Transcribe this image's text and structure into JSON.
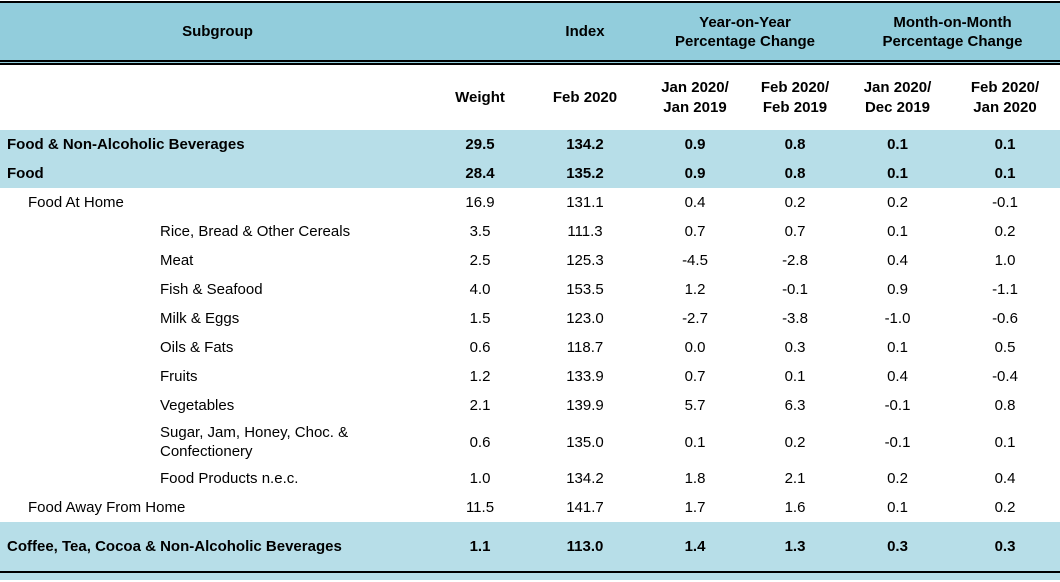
{
  "colors": {
    "header_bg": "#92CDDC",
    "highlight_bg": "#B7DEE8",
    "border": "#000000"
  },
  "table": {
    "header_top": {
      "subgroup": "Subgroup",
      "index": "Index",
      "yoy": "Year-on-Year\nPercentage Change",
      "mom": "Month-on-Month\nPercentage Change"
    },
    "header_sub": {
      "weight": "Weight",
      "index_period": "Feb 2020",
      "yoy1": "Jan 2020/\nJan 2019",
      "yoy2": "Feb 2020/\nFeb 2019",
      "mom1": "Jan 2020/\nDec 2019",
      "mom2": "Feb 2020/\nJan 2020"
    },
    "rows": [
      {
        "name": "Food & Non-Alcoholic Beverages",
        "indent": 0,
        "highlighted": true,
        "weight": "29.5",
        "index": "134.2",
        "yoy1": "0.9",
        "yoy2": "0.8",
        "mom1": "0.1",
        "mom2": "0.1"
      },
      {
        "name": "Food",
        "indent": 0,
        "highlighted": true,
        "weight": "28.4",
        "index": "135.2",
        "yoy1": "0.9",
        "yoy2": "0.8",
        "mom1": "0.1",
        "mom2": "0.1"
      },
      {
        "name": "Food At Home",
        "indent": 1,
        "highlighted": false,
        "weight": "16.9",
        "index": "131.1",
        "yoy1": "0.4",
        "yoy2": "0.2",
        "mom1": "0.2",
        "mom2": "-0.1"
      },
      {
        "name": "Rice, Bread & Other Cereals",
        "indent": 2,
        "highlighted": false,
        "weight": "3.5",
        "index": "111.3",
        "yoy1": "0.7",
        "yoy2": "0.7",
        "mom1": "0.1",
        "mom2": "0.2"
      },
      {
        "name": "Meat",
        "indent": 2,
        "highlighted": false,
        "weight": "2.5",
        "index": "125.3",
        "yoy1": "-4.5",
        "yoy2": "-2.8",
        "mom1": "0.4",
        "mom2": "1.0"
      },
      {
        "name": "Fish & Seafood",
        "indent": 2,
        "highlighted": false,
        "weight": "4.0",
        "index": "153.5",
        "yoy1": "1.2",
        "yoy2": "-0.1",
        "mom1": "0.9",
        "mom2": "-1.1"
      },
      {
        "name": "Milk & Eggs",
        "indent": 2,
        "highlighted": false,
        "weight": "1.5",
        "index": "123.0",
        "yoy1": "-2.7",
        "yoy2": "-3.8",
        "mom1": "-1.0",
        "mom2": "-0.6"
      },
      {
        "name": "Oils & Fats",
        "indent": 2,
        "highlighted": false,
        "weight": "0.6",
        "index": "118.7",
        "yoy1": "0.0",
        "yoy2": "0.3",
        "mom1": "0.1",
        "mom2": "0.5"
      },
      {
        "name": "Fruits",
        "indent": 2,
        "highlighted": false,
        "weight": "1.2",
        "index": "133.9",
        "yoy1": "0.7",
        "yoy2": "0.1",
        "mom1": "0.4",
        "mom2": "-0.4"
      },
      {
        "name": "Vegetables",
        "indent": 2,
        "highlighted": false,
        "weight": "2.1",
        "index": "139.9",
        "yoy1": "5.7",
        "yoy2": "6.3",
        "mom1": "-0.1",
        "mom2": "0.8"
      },
      {
        "name": "Sugar, Jam, Honey, Choc. &\nConfectionery",
        "indent": 2,
        "highlighted": false,
        "weight": "0.6",
        "index": "135.0",
        "yoy1": "0.1",
        "yoy2": "0.2",
        "mom1": "-0.1",
        "mom2": "0.1"
      },
      {
        "name": "Food Products n.e.c.",
        "indent": 2,
        "highlighted": false,
        "weight": "1.0",
        "index": "134.2",
        "yoy1": "1.8",
        "yoy2": "2.1",
        "mom1": "0.2",
        "mom2": "0.4"
      },
      {
        "name": "Food Away From Home",
        "indent": 1,
        "highlighted": false,
        "weight": "11.5",
        "index": "141.7",
        "yoy1": "1.7",
        "yoy2": "1.6",
        "mom1": "0.1",
        "mom2": "0.2"
      },
      {
        "name": "Coffee, Tea, Cocoa & Non-Alcoholic Beverages",
        "indent": 0,
        "highlighted": true,
        "weight": "1.1",
        "index": "113.0",
        "yoy1": "1.4",
        "yoy2": "1.3",
        "mom1": "0.3",
        "mom2": "0.3"
      }
    ]
  }
}
